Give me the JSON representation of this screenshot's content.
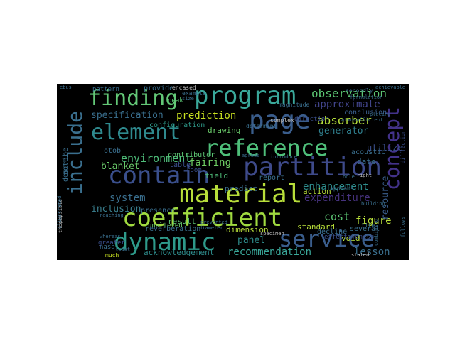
{
  "words": [
    {
      "text": "program",
      "color": "#3aa89a"
    },
    {
      "text": "finding",
      "color": "#63c877"
    },
    {
      "text": "page",
      "color": "#3a5d8c"
    },
    {
      "text": "element",
      "color": "#2f8a8e"
    },
    {
      "text": "reference",
      "color": "#4fbf7a"
    },
    {
      "text": "contain",
      "color": "#3a4f8c"
    },
    {
      "text": "partition",
      "color": "#3e4a8a"
    },
    {
      "text": "material",
      "color": "#b8de3a"
    },
    {
      "text": "coefficient",
      "color": "#a0da40"
    },
    {
      "text": "dynamic",
      "color": "#2e9a8a"
    },
    {
      "text": "service",
      "color": "#3a5d8c"
    },
    {
      "text": "include",
      "color": "#3a6f8e"
    },
    {
      "text": "concept",
      "color": "#43328a"
    },
    {
      "text": "observation",
      "color": "#5cc573"
    },
    {
      "text": "approximate",
      "color": "#41448a"
    },
    {
      "text": "absorber",
      "color": "#b5de3c"
    },
    {
      "text": "generator",
      "color": "#2f7f8e"
    },
    {
      "text": "prediction",
      "color": "#c8e020"
    },
    {
      "text": "specification",
      "color": "#3a6f8e"
    },
    {
      "text": "environment",
      "color": "#4fbf7a"
    },
    {
      "text": "blanket",
      "color": "#6bcc6b"
    },
    {
      "text": "fairing",
      "color": "#6fce64"
    },
    {
      "text": "enhancement",
      "color": "#2e8c8c"
    },
    {
      "text": "expenditure",
      "color": "#46327e"
    },
    {
      "text": "system",
      "color": "#3a6f8e"
    },
    {
      "text": "inclusion",
      "color": "#3a7f8e"
    },
    {
      "text": "cost",
      "color": "#5cc573"
    },
    {
      "text": "figure",
      "color": "#b8de3a"
    },
    {
      "text": "panel",
      "color": "#2e8c8c"
    },
    {
      "text": "recommendation",
      "color": "#3aa89a"
    },
    {
      "text": "lesson",
      "color": "#3a6f8e"
    },
    {
      "text": "acknowledgement",
      "color": "#2e8c8c"
    },
    {
      "text": "resource",
      "color": "#3a5d8c"
    },
    {
      "text": "configuration",
      "color": "#2e9a8a"
    },
    {
      "text": "drawing",
      "color": "#6bcc6b"
    },
    {
      "text": "field",
      "color": "#4fbf7a"
    },
    {
      "text": "predict",
      "color": "#3a6f8e"
    },
    {
      "text": "report",
      "color": "#3a6f8e"
    },
    {
      "text": "action",
      "color": "#b8de3a"
    },
    {
      "text": "standard",
      "color": "#b8de3a"
    },
    {
      "text": "dimension",
      "color": "#b8de3a"
    },
    {
      "text": "result",
      "color": "#5cc573"
    },
    {
      "text": "reverberation",
      "color": "#3a6f8e"
    },
    {
      "text": "presence",
      "color": "#3a6f8e"
    },
    {
      "text": "contributor",
      "color": "#5cc573"
    },
    {
      "text": "table",
      "color": "#3a4f8c"
    },
    {
      "text": "room",
      "color": "#3a4f8c"
    },
    {
      "text": "otob",
      "color": "#3a6f8e"
    },
    {
      "text": "utilize",
      "color": "#3a4f8c"
    },
    {
      "text": "date",
      "color": "#3a6f8e"
    },
    {
      "text": "acoustic",
      "color": "#3a6f8e"
    },
    {
      "text": "conclusion",
      "color": "#3a5d8c"
    },
    {
      "text": "pattern",
      "color": "#3a6f8e"
    },
    {
      "text": "provide",
      "color": "#3a6f8e"
    },
    {
      "text": "describe",
      "color": "#3a6f8e"
    },
    {
      "text": "note",
      "color": "#3a6f8e"
    },
    {
      "text": "void",
      "color": "#b8de3a"
    },
    {
      "text": "several",
      "color": "#3a6f8e"
    },
    {
      "text": "complex",
      "color": "#c0c0c0"
    },
    {
      "text": "direction",
      "color": "#3a4f8c"
    },
    {
      "text": "decline",
      "color": "#3a6f8e"
    },
    {
      "text": "unaltered",
      "color": "#6bcc6b"
    },
    {
      "text": "nasa",
      "color": "#3a6f8e"
    },
    {
      "text": "greater",
      "color": "#3a4f8c"
    },
    {
      "text": "much",
      "color": "#c8e020"
    },
    {
      "text": "peak",
      "color": "#5cc573"
    },
    {
      "text": "example",
      "color": "#3a6f8e"
    },
    {
      "text": "encased",
      "color": "#c0c0c0"
    },
    {
      "text": "magnitude",
      "color": "#3a6f8e"
    },
    {
      "text": "determine",
      "color": "#3a6f8e"
    },
    {
      "text": "effectiveness",
      "color": "#3a4f8c"
    },
    {
      "text": "possible",
      "color": "#c0c0c0"
    },
    {
      "text": "theory",
      "color": "#c0c0c0"
    },
    {
      "text": "illustrated",
      "color": "#3a6f8e"
    },
    {
      "text": "whereas",
      "color": "#3a6f8e"
    },
    {
      "text": "reaching",
      "color": "#3a6f8e"
    },
    {
      "text": "prevented",
      "color": "#3a6f8e"
    },
    {
      "text": "agrees",
      "color": "#3a6f8e"
    },
    {
      "text": "appears",
      "color": "#3a6f8e"
    },
    {
      "text": "stated",
      "color": "#c0c0c0"
    },
    {
      "text": "secondly",
      "color": "#3a6f8e"
    },
    {
      "text": "achievable",
      "color": "#3a6f8e"
    },
    {
      "text": "follows",
      "color": "#3a6f8e"
    },
    {
      "text": "diffraction",
      "color": "#3a4f8c"
    },
    {
      "text": "formulation",
      "color": "#3a6f8e"
    },
    {
      "text": "hole",
      "color": "#3a6f8e"
    },
    {
      "text": "fire",
      "color": "#3a6f8e"
    },
    {
      "text": "size",
      "color": "#3a6f8e"
    },
    {
      "text": "diameter",
      "color": "#3a6f8e"
    },
    {
      "text": "specimen",
      "color": "#c0c0c0"
    },
    {
      "text": "introduce",
      "color": "#3a6f8e"
    },
    {
      "text": "combining",
      "color": "#3a6f8e"
    },
    {
      "text": "building",
      "color": "#3a6f8e"
    },
    {
      "text": "placing",
      "color": "#3a6f8e"
    },
    {
      "text": "atmosufficient",
      "color": "#3a6f8e"
    },
    {
      "text": "right",
      "color": "#c0c0c0"
    },
    {
      "text": "least",
      "color": "#3a6f8e"
    },
    {
      "text": "ebus",
      "color": "#3a6f8e"
    }
  ]
}
